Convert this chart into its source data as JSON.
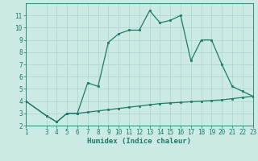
{
  "xlabel": "Humidex (Indice chaleur)",
  "background_color": "#cceae4",
  "grid_color": "#aad4cc",
  "line_color": "#1e7a6a",
  "x_upper": [
    1,
    3,
    4,
    5,
    6,
    7,
    8,
    9,
    10,
    11,
    12,
    13,
    14,
    15,
    16,
    17,
    18,
    19,
    20,
    21,
    22,
    23
  ],
  "y_upper": [
    4.0,
    2.8,
    2.3,
    3.0,
    3.0,
    5.5,
    5.2,
    8.8,
    9.5,
    9.8,
    9.8,
    11.4,
    10.4,
    10.6,
    11.0,
    7.3,
    9.0,
    9.0,
    7.0,
    5.2,
    4.8,
    4.4
  ],
  "x_lower": [
    1,
    3,
    4,
    5,
    6,
    7,
    8,
    9,
    10,
    11,
    12,
    13,
    14,
    15,
    16,
    17,
    18,
    19,
    20,
    21,
    22,
    23
  ],
  "y_lower": [
    4.0,
    2.8,
    2.3,
    3.0,
    3.0,
    3.1,
    3.2,
    3.3,
    3.4,
    3.5,
    3.6,
    3.7,
    3.8,
    3.85,
    3.9,
    3.95,
    4.0,
    4.05,
    4.1,
    4.2,
    4.3,
    4.4
  ],
  "xlim": [
    1,
    23
  ],
  "ylim": [
    2,
    12
  ],
  "yticks": [
    2,
    3,
    4,
    5,
    6,
    7,
    8,
    9,
    10,
    11
  ],
  "xticks": [
    1,
    3,
    4,
    5,
    6,
    7,
    8,
    9,
    10,
    11,
    12,
    13,
    14,
    15,
    16,
    17,
    18,
    19,
    20,
    21,
    22,
    23
  ],
  "fontsize_label": 6.5,
  "fontsize_tick": 5.5
}
